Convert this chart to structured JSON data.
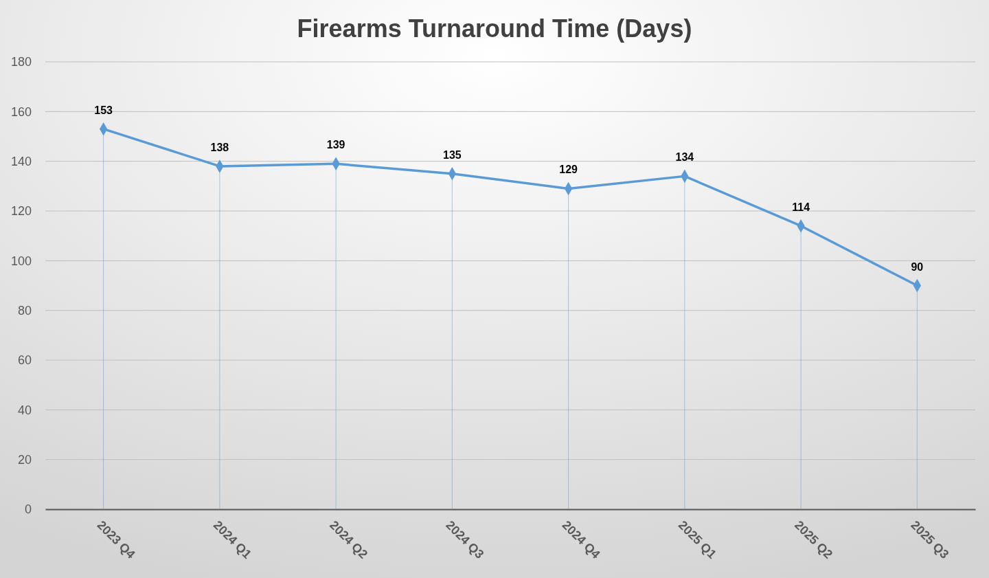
{
  "chart_data": {
    "type": "line",
    "title": "Firearms Turnaround Time (Days)",
    "categories": [
      "2023 Q4",
      "2024 Q1",
      "2024 Q2",
      "2024 Q3",
      "2024 Q4",
      "2025 Q1",
      "2025 Q2",
      "2025 Q3"
    ],
    "series": [
      {
        "color": "#5b9bd5",
        "values": [
          153,
          138,
          139,
          135,
          129,
          134,
          114,
          90
        ]
      }
    ],
    "ylim": [
      0,
      180
    ],
    "yticks": [
      0,
      20,
      40,
      60,
      80,
      100,
      120,
      140,
      160,
      180
    ],
    "grid": true,
    "marker": "diamond",
    "line_style": "solid",
    "data_labels": true
  }
}
